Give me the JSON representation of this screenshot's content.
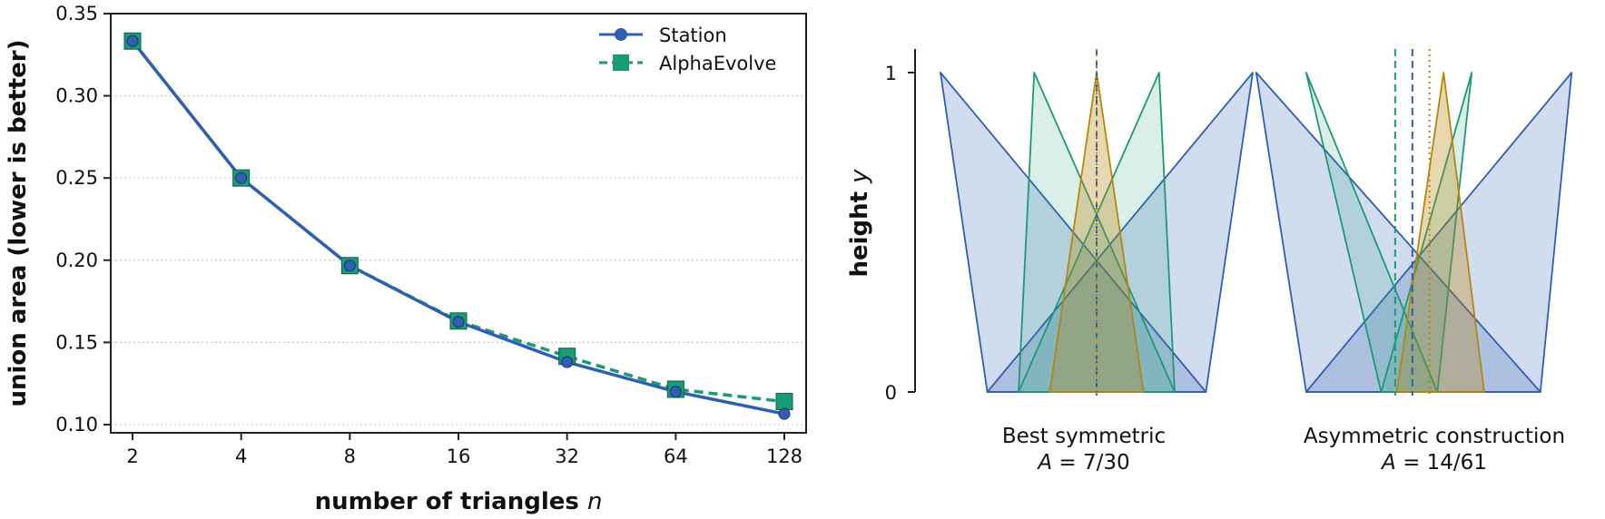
{
  "chart_data": [
    {
      "type": "line",
      "xlabel": "number of triangles",
      "xlabel_var": "n",
      "ylabel": "union area (lower is better)",
      "x_scale": "log2",
      "categories": [
        "2",
        "4",
        "8",
        "16",
        "32",
        "64",
        "128"
      ],
      "x": [
        2,
        4,
        8,
        16,
        32,
        64,
        128
      ],
      "ylim": [
        0.095,
        0.35
      ],
      "yticks": [
        "0.10",
        "0.15",
        "0.20",
        "0.25",
        "0.30",
        "0.35"
      ],
      "ytick_values": [
        0.1,
        0.15,
        0.2,
        0.25,
        0.3,
        0.35
      ],
      "grid": "horizontal dotted",
      "legend_position": "top-right",
      "series": [
        {
          "name": "Station",
          "values": [
            0.3333,
            0.25,
            0.1967,
            0.1625,
            0.138,
            0.12,
            0.1065
          ],
          "color": "#2f5fb3",
          "marker": "circle",
          "line": "solid"
        },
        {
          "name": "AlphaEvolve",
          "values": [
            0.3333,
            0.25,
            0.1967,
            0.163,
            0.1415,
            0.1215,
            0.114
          ],
          "color": "#1a9b76",
          "marker": "square",
          "line": "dashed"
        }
      ]
    },
    {
      "type": "diagram",
      "ylabel": "height",
      "ylabel_var": "y",
      "yticks": [
        "0",
        "1"
      ],
      "colors": {
        "blue": "#2f5fb3",
        "green": "#1a9b76",
        "orange": "#b8860b"
      },
      "panels": [
        {
          "caption": "Best symmetric",
          "formula_var": "A",
          "formula_value": "= 7/30",
          "triangles": [
            {
              "color": "blue",
              "base": [
                -0.7,
                0.7
              ],
              "apex": -1.0
            },
            {
              "color": "blue",
              "base": [
                -0.7,
                0.7
              ],
              "apex": 1.0
            },
            {
              "color": "green",
              "base": [
                -0.5,
                0.5
              ],
              "apex": -0.4
            },
            {
              "color": "green",
              "base": [
                -0.5,
                0.5
              ],
              "apex": 0.4
            },
            {
              "color": "orange",
              "base": [
                -0.3,
                0.3
              ],
              "apex": 0.0
            }
          ],
          "vlines": [
            {
              "color": "green",
              "x": 0.0,
              "style": "dashed"
            },
            {
              "color": "blue",
              "x": 0.0,
              "style": "dashed"
            },
            {
              "color": "orange",
              "x": 0.0,
              "style": "dotted"
            }
          ]
        },
        {
          "caption": "Asymmetric construction",
          "formula_var": "A",
          "formula_value": "= 14/61",
          "triangles": [
            {
              "color": "blue",
              "base": [
                -0.78,
                0.72
              ],
              "apex": -1.1
            },
            {
              "color": "blue",
              "base": [
                -0.78,
                0.72
              ],
              "apex": 0.92
            },
            {
              "color": "green",
              "base": [
                -0.3,
                0.06
              ],
              "apex": -0.78
            },
            {
              "color": "green",
              "base": [
                -0.3,
                0.06
              ],
              "apex": 0.28
            },
            {
              "color": "orange",
              "base": [
                -0.2,
                0.36
              ],
              "apex": 0.1
            }
          ],
          "vlines": [
            {
              "color": "green",
              "x": -0.21,
              "style": "dashed"
            },
            {
              "color": "blue",
              "x": -0.1,
              "style": "dashed"
            },
            {
              "color": "orange",
              "x": 0.01,
              "style": "dotted"
            }
          ]
        }
      ]
    }
  ]
}
